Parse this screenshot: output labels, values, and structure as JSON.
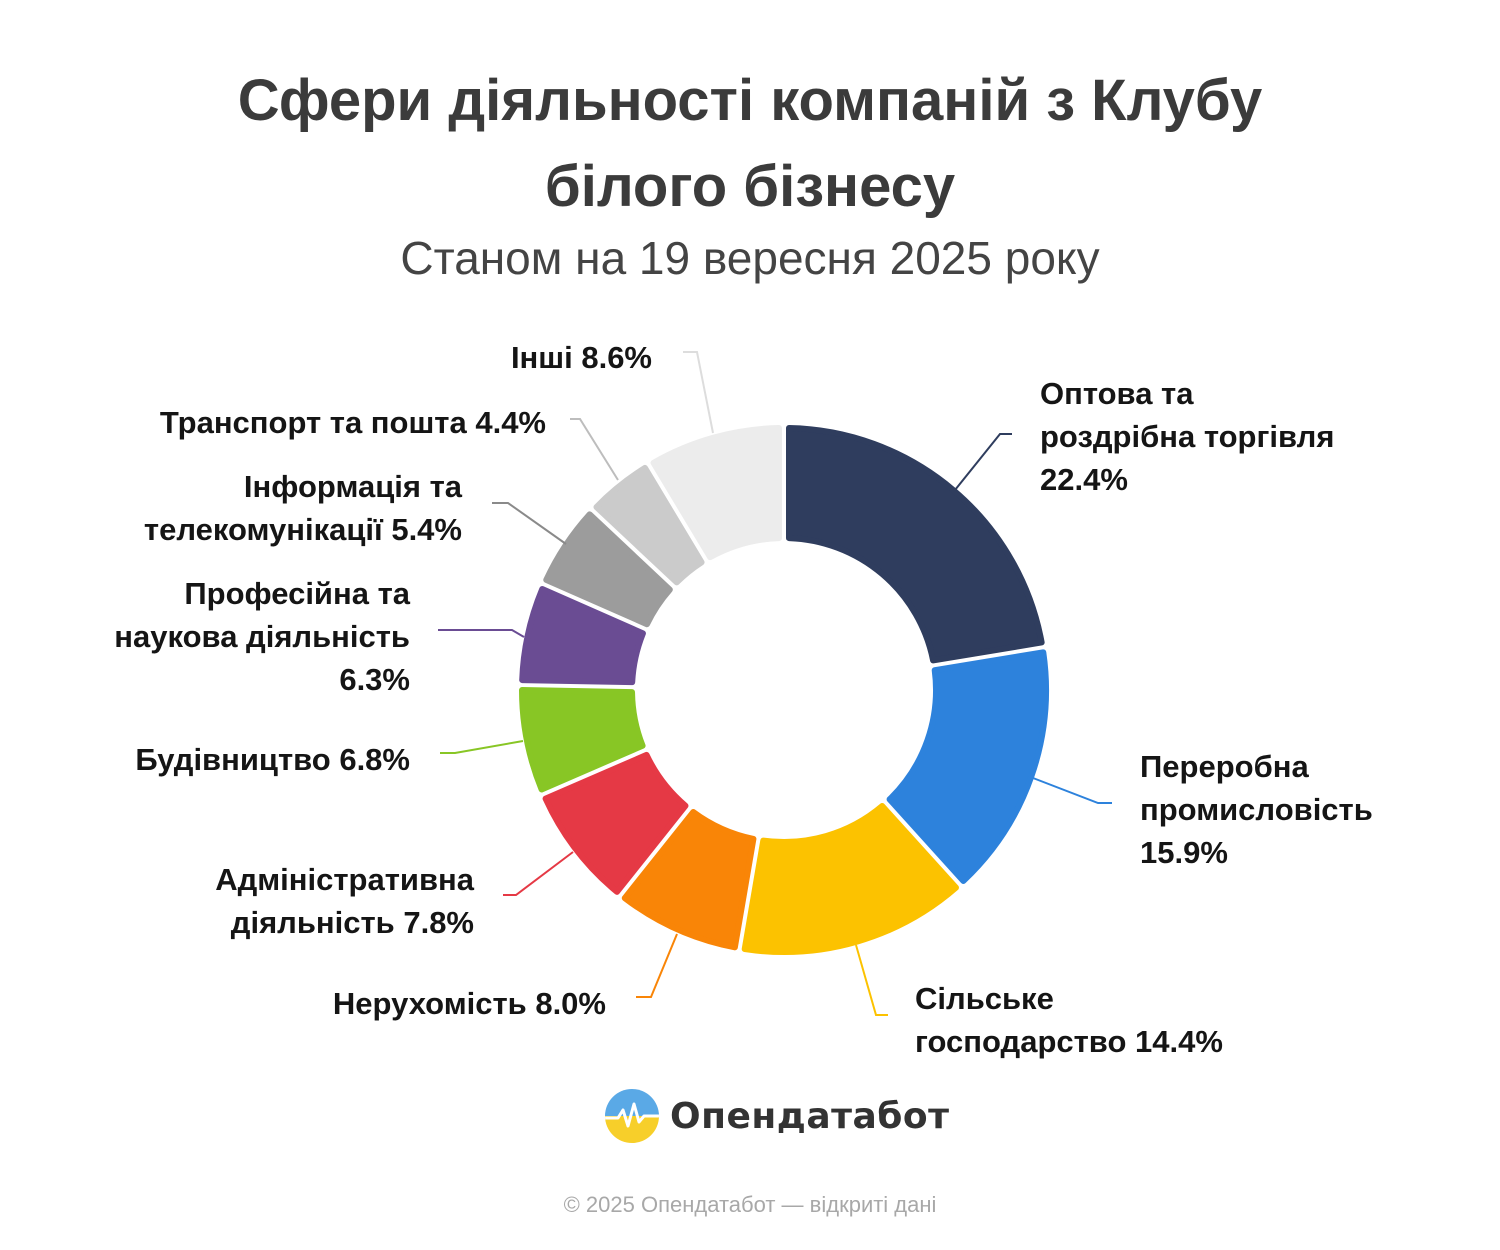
{
  "header": {
    "title": "Сфери діяльності компаній з Клубу білого бізнесу",
    "subtitle": "Станом на 19 вересня 2025 року"
  },
  "chart_data": {
    "type": "pie",
    "variant": "donut",
    "title": "Сфери діяльності компаній з Клубу білого бізнесу",
    "subtitle": "Станом на 19 вересня 2025 року",
    "unit": "%",
    "slices": [
      {
        "label": "Оптова та роздрібна торгівля",
        "label_lines": [
          "Оптова та",
          "роздрібна торгівля",
          "22.4%"
        ],
        "value": 22.4,
        "color": "#2f3d5e"
      },
      {
        "label": "Переробна промисловість",
        "label_lines": [
          "Переробна",
          "промисловість",
          "15.9%"
        ],
        "value": 15.9,
        "color": "#2d82dc"
      },
      {
        "label": "Сільське господарство",
        "label_lines": [
          "Сільське",
          "господарство 14.4%"
        ],
        "value": 14.4,
        "color": "#fcc200"
      },
      {
        "label": "Нерухомість",
        "label_lines": [
          "Нерухомість 8.0%"
        ],
        "value": 8.0,
        "color": "#f98507"
      },
      {
        "label": "Адміністративна діяльність",
        "label_lines": [
          "Адміністративна",
          "діяльність 7.8%"
        ],
        "value": 7.8,
        "color": "#e53945"
      },
      {
        "label": "Будівництво",
        "label_lines": [
          "Будівництво 6.8%"
        ],
        "value": 6.8,
        "color": "#88c625"
      },
      {
        "label": "Професійна та наукова діяльність",
        "label_lines": [
          "Професійна та",
          "наукова діяльність",
          "6.3%"
        ],
        "value": 6.3,
        "color": "#6a4c93"
      },
      {
        "label": "Інформація та телекомунікації",
        "label_lines": [
          "Інформація та",
          "телекомунікації 5.4%"
        ],
        "value": 5.4,
        "color": "#9c9c9c"
      },
      {
        "label": "Транспорт та пошта",
        "label_lines": [
          "Транспорт та пошта 4.4%"
        ],
        "value": 4.4,
        "color": "#cbcbcb"
      },
      {
        "label": "Інші",
        "label_lines": [
          "Інші 8.6%"
        ],
        "value": 8.6,
        "color": "#ececec"
      }
    ],
    "legend": "none",
    "labels": "outside with leader lines"
  },
  "brand": {
    "name": "Опендатабот",
    "icon": "opendatabot-logo-icon"
  },
  "footer": {
    "text": "© 2025 Опендатабот — відкриті дані"
  }
}
